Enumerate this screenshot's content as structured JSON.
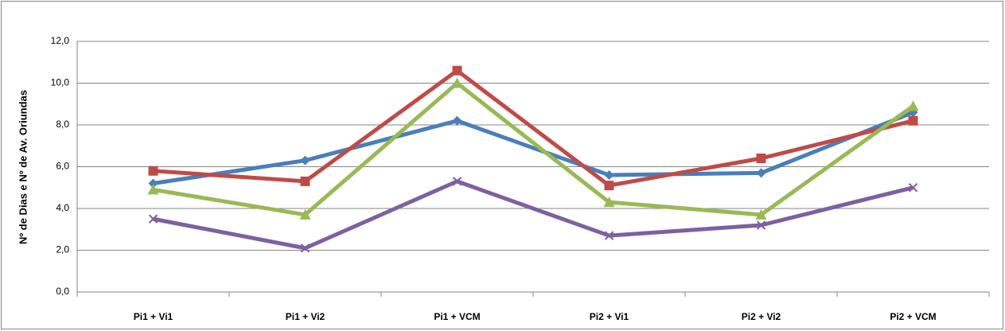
{
  "chart_data": {
    "type": "line",
    "y_label": "Nº de Dias e Nº de Av. Oriundas",
    "categories": [
      "Pi1 + Vi1",
      "Pi1 + Vi2",
      "Pi1 + VCM",
      "Pi2 + Vi1",
      "Pi2 + Vi2",
      "Pi2 + VCM"
    ],
    "series": [
      {
        "color": "#4a7ebb",
        "marker": "diamond",
        "values": [
          5.2,
          6.3,
          8.2,
          5.6,
          5.7,
          8.6
        ]
      },
      {
        "color": "#be4b48",
        "marker": "square",
        "values": [
          5.8,
          5.3,
          10.6,
          5.1,
          6.4,
          8.2
        ]
      },
      {
        "color": "#98b954",
        "marker": "triangle",
        "values": [
          4.9,
          3.7,
          10.0,
          4.3,
          3.7,
          8.9
        ]
      },
      {
        "color": "#7d60a0",
        "marker": "x",
        "values": [
          3.5,
          2.1,
          5.3,
          2.7,
          3.2,
          5.0
        ]
      }
    ],
    "ylim": [
      0,
      12
    ],
    "yticks": [
      {
        "value": 0,
        "label": "0,0"
      },
      {
        "value": 2,
        "label": "2,0"
      },
      {
        "value": 4,
        "label": "4,0"
      },
      {
        "value": 6,
        "label": "6,0"
      },
      {
        "value": 8,
        "label": "8,0"
      },
      {
        "value": 10,
        "label": "10,0"
      },
      {
        "value": 12,
        "label": "12,0"
      }
    ],
    "grid": true
  }
}
